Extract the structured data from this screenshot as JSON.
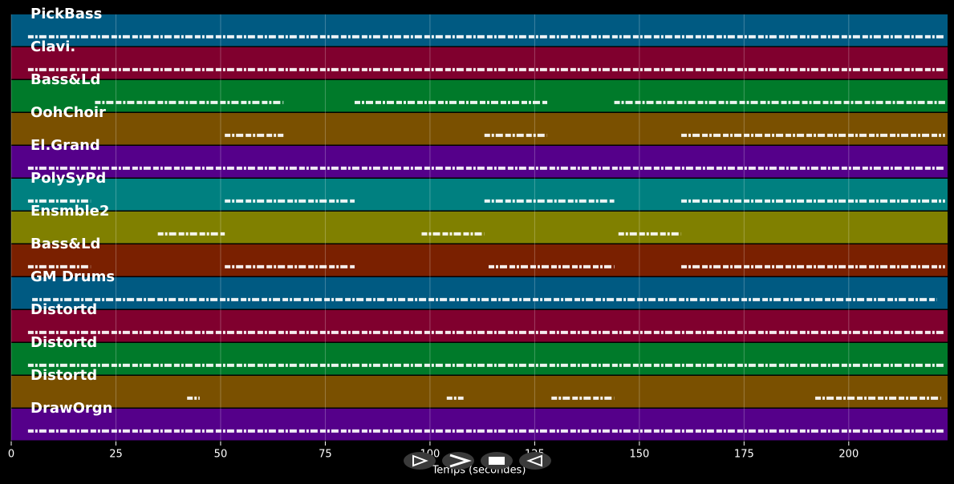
{
  "chart_data": {
    "type": "pianoroll",
    "xlabel": "Temps (secondes)",
    "xlim": [
      0,
      223.6
    ],
    "xticks": [
      0,
      25,
      50,
      75,
      100,
      125,
      150,
      175,
      200
    ],
    "grid": true,
    "tracks": [
      {
        "name": "PickBass",
        "color": "#005a82",
        "spans": [
          [
            4,
            223
          ]
        ]
      },
      {
        "name": "Clavi.",
        "color": "#80002e",
        "spans": [
          [
            4,
            223
          ]
        ]
      },
      {
        "name": "Bass&Ld",
        "color": "#007a2a",
        "spans": [
          [
            20,
            65
          ],
          [
            82,
            128
          ],
          [
            144,
            223
          ]
        ]
      },
      {
        "name": "OohChoir",
        "color": "#7a5000",
        "spans": [
          [
            51,
            65
          ],
          [
            113,
            128
          ],
          [
            160,
            223
          ]
        ]
      },
      {
        "name": "El.Grand",
        "color": "#55008a",
        "spans": [
          [
            4,
            223
          ]
        ]
      },
      {
        "name": "PolySyPd",
        "color": "#008080",
        "spans": [
          [
            4,
            19
          ],
          [
            51,
            82
          ],
          [
            113,
            144
          ],
          [
            160,
            223
          ]
        ]
      },
      {
        "name": "Ensmble2",
        "color": "#808000",
        "spans": [
          [
            35,
            51
          ],
          [
            98,
            113
          ],
          [
            145,
            160
          ]
        ]
      },
      {
        "name": "Bass&Ld",
        "color": "#7a2000",
        "spans": [
          [
            4,
            19
          ],
          [
            51,
            82
          ],
          [
            114,
            144
          ],
          [
            160,
            223
          ]
        ]
      },
      {
        "name": "GM Drums",
        "color": "#005a82",
        "spans": [
          [
            5,
            221
          ]
        ]
      },
      {
        "name": "Distortd",
        "color": "#80002e",
        "spans": [
          [
            4,
            223
          ]
        ]
      },
      {
        "name": "Distortd",
        "color": "#007a2a",
        "spans": [
          [
            4,
            223
          ]
        ]
      },
      {
        "name": "Distortd",
        "color": "#7a5000",
        "spans": [
          [
            42,
            45
          ],
          [
            104,
            108
          ],
          [
            129,
            144
          ],
          [
            192,
            222
          ]
        ]
      },
      {
        "name": "DrawOrgn",
        "color": "#55008a",
        "spans": [
          [
            4,
            223
          ]
        ]
      }
    ]
  }
}
